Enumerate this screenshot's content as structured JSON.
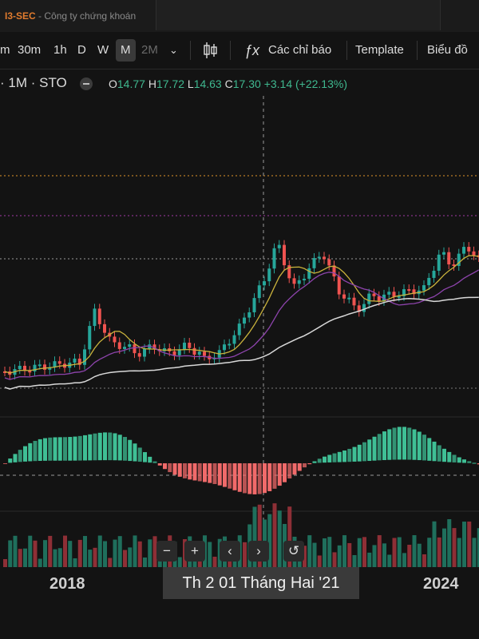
{
  "brand": {
    "name": "I3-SEC",
    "sep": " - ",
    "subtitle": "Công ty chứng khoán"
  },
  "toolbar": {
    "intervals": [
      "m",
      "30m",
      "1h",
      "D",
      "W",
      "M",
      "2M"
    ],
    "active_interval": "M",
    "chart_type_icon": "candlestick-icon",
    "indicators_label": "Các chỉ báo",
    "template_label": "Template",
    "chart_label": "Biểu đồ"
  },
  "legend": {
    "symbol": "· 1M · STO",
    "o_label": "O",
    "o_value": "14.77",
    "h_label": "H",
    "h_value": "17.72",
    "l_label": "L",
    "l_value": "14.63",
    "c_label": "C",
    "c_value": "17.30",
    "change": "+3.14 (+22.13%)"
  },
  "colors": {
    "up": "#26a69a",
    "down": "#ef5350",
    "ma_fast": "#c9b23c",
    "ma_mid": "#8e44ad",
    "ma_slow": "#d8d8d8",
    "orange_line": "#e0962a",
    "purple_line": "#a23aa6"
  },
  "x_axis": {
    "labels": [
      "2018",
      "2024"
    ]
  },
  "crosshair": {
    "date_label": "Th 2 01 Tháng Hai '21"
  },
  "nav": {
    "zoom_out": "−",
    "zoom_in": "+",
    "prev": "‹",
    "next": "›",
    "reset": "↺"
  }
}
